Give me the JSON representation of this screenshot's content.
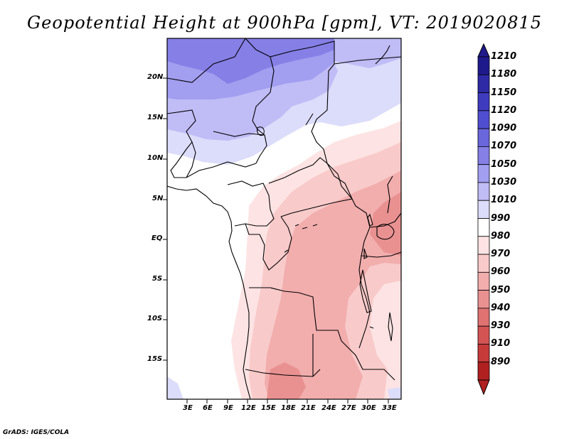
{
  "title": "Geopotential Height at 900hPa [gpm], VT: 2019020815",
  "footer": "GrADS: IGES/COLA",
  "y_ticks": [
    "20N",
    "15N",
    "10N",
    "5N",
    "EQ",
    "5S",
    "10S",
    "15S"
  ],
  "x_ticks": [
    "3E",
    "6E",
    "9E",
    "12E",
    "15E",
    "18E",
    "21E",
    "24E",
    "27E",
    "30E",
    "33E"
  ],
  "colorbar": {
    "labels": [
      "1210",
      "1180",
      "1150",
      "1120",
      "1090",
      "1070",
      "1050",
      "1030",
      "1010",
      "990",
      "980",
      "970",
      "960",
      "950",
      "940",
      "930",
      "910",
      "890"
    ],
    "colors": [
      "#1f1a8c",
      "#2e2aa6",
      "#3f3bbf",
      "#504ed0",
      "#6a66dc",
      "#857fe6",
      "#a29ef0",
      "#c0bcf6",
      "#dcdcfb",
      "#ffffff",
      "#fde3e3",
      "#f9caca",
      "#f2adad",
      "#e99191",
      "#e07272",
      "#d45454",
      "#c63a3a",
      "#b02020"
    ]
  },
  "chart_data": {
    "type": "heatmap",
    "title": "Geopotential Height at 900hPa [gpm], VT: 2019020815",
    "variable": "Geopotential Height",
    "level": "900hPa",
    "units": "gpm",
    "valid_time": "2019020815",
    "x_range": [
      0,
      35
    ],
    "y_range": [
      -20,
      25
    ],
    "x_ticks": [
      "3E",
      "6E",
      "9E",
      "12E",
      "15E",
      "18E",
      "21E",
      "24E",
      "27E",
      "30E",
      "33E"
    ],
    "y_ticks": [
      "20N",
      "15N",
      "10N",
      "5N",
      "EQ",
      "5S",
      "10S",
      "15S"
    ],
    "contour_levels": [
      890,
      910,
      930,
      940,
      950,
      960,
      970,
      980,
      990,
      1010,
      1030,
      1050,
      1070,
      1090,
      1120,
      1150,
      1180,
      1210
    ]
  }
}
